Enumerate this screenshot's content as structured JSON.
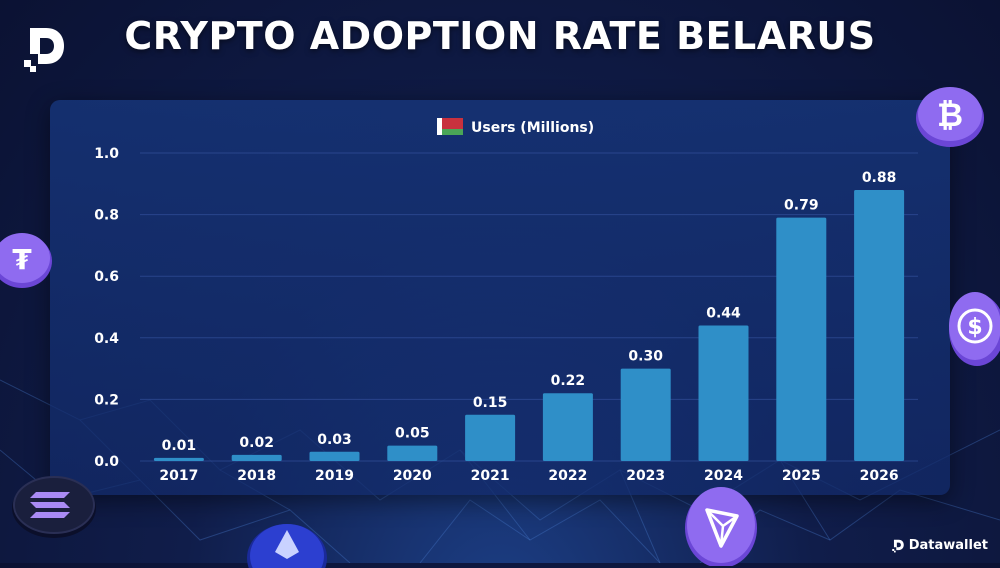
{
  "header": {
    "title": "CRYPTO ADOPTION RATE BELARUS"
  },
  "brand": {
    "name": "Datawallet"
  },
  "colors": {
    "bar": "#2f8fc8",
    "text": "#ffffff",
    "grid": "#3a5aa8"
  },
  "icons": [
    "datawallet-logo-icon",
    "belarus-flag-icon",
    "bitcoin-coin-icon",
    "tether-coin-icon",
    "usdc-coin-icon",
    "solana-coin-icon",
    "ethereum-coin-icon",
    "tron-coin-icon"
  ],
  "chart_data": {
    "type": "bar",
    "title": "",
    "xlabel": "",
    "ylabel": "",
    "categories": [
      "2017",
      "2018",
      "2019",
      "2020",
      "2021",
      "2022",
      "2023",
      "2024",
      "2025",
      "2026"
    ],
    "series": [
      {
        "name": "Users (Millions)",
        "values": [
          0.01,
          0.02,
          0.03,
          0.05,
          0.15,
          0.22,
          0.3,
          0.44,
          0.79,
          0.88
        ],
        "labels": [
          "0.01",
          "0.02",
          "0.03",
          "0.05",
          "0.15",
          "0.22",
          "0.30",
          "0.44",
          "0.79",
          "0.88"
        ]
      }
    ],
    "ylim": [
      0,
      1.0
    ],
    "yticks": [
      "0.0",
      "0.2",
      "0.4",
      "0.6",
      "0.8",
      "1.0"
    ],
    "grid": true,
    "legend": "top-center"
  }
}
